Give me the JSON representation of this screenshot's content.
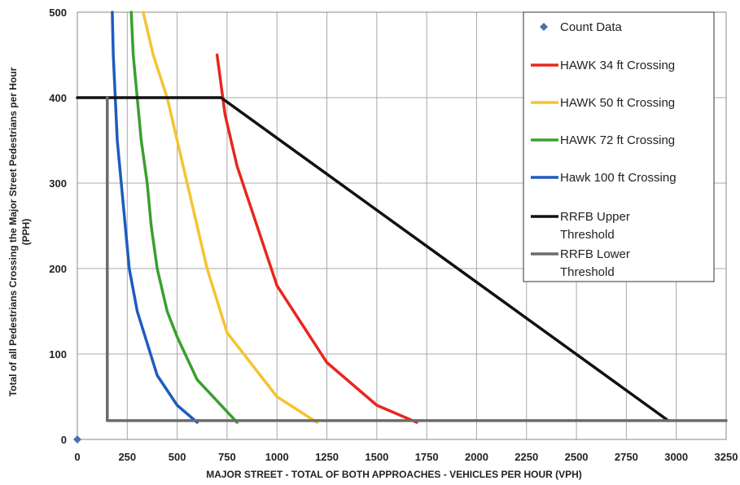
{
  "chart_data": {
    "type": "line",
    "xlabel": "MAJOR STREET - TOTAL OF BOTH APPROACHES - VEHICLES PER HOUR (VPH)",
    "ylabel_line1": "Total of all Pedestrians Crossing the Major Street Pedestrians per Hour",
    "ylabel_line2": "(PPH)",
    "xlim": [
      0,
      3250
    ],
    "ylim": [
      0,
      500
    ],
    "xticks": [
      0,
      250,
      500,
      750,
      1000,
      1250,
      1500,
      1750,
      2000,
      2250,
      2500,
      2750,
      3000,
      3250
    ],
    "yticks": [
      0,
      100,
      200,
      300,
      400,
      500
    ],
    "grid": true,
    "legend_position": "top-right",
    "series": [
      {
        "name": "Count Data",
        "kind": "marker",
        "color": "#4a6fb5",
        "points": [
          [
            0,
            0
          ]
        ]
      },
      {
        "name": "HAWK 34 ft Crossing",
        "kind": "line",
        "color": "#e8261f",
        "points": [
          [
            700,
            450
          ],
          [
            740,
            380
          ],
          [
            800,
            320
          ],
          [
            900,
            250
          ],
          [
            1000,
            180
          ],
          [
            1250,
            90
          ],
          [
            1500,
            40
          ],
          [
            1700,
            20
          ]
        ]
      },
      {
        "name": "HAWK 50 ft Crossing",
        "kind": "line",
        "color": "#f4c430",
        "points": [
          [
            330,
            500
          ],
          [
            380,
            450
          ],
          [
            450,
            400
          ],
          [
            500,
            350
          ],
          [
            550,
            300
          ],
          [
            600,
            250
          ],
          [
            650,
            200
          ],
          [
            750,
            125
          ],
          [
            1000,
            50
          ],
          [
            1200,
            20
          ]
        ]
      },
      {
        "name": "HAWK 72 ft Crossing",
        "kind": "line",
        "color": "#3aa02f",
        "points": [
          [
            270,
            500
          ],
          [
            280,
            450
          ],
          [
            300,
            400
          ],
          [
            320,
            350
          ],
          [
            350,
            300
          ],
          [
            370,
            250
          ],
          [
            400,
            200
          ],
          [
            450,
            150
          ],
          [
            500,
            120
          ],
          [
            600,
            70
          ],
          [
            800,
            20
          ]
        ]
      },
      {
        "name": "Hawk 100 ft Crossing",
        "kind": "line",
        "color": "#1f5bbf",
        "points": [
          [
            175,
            500
          ],
          [
            180,
            450
          ],
          [
            190,
            400
          ],
          [
            200,
            350
          ],
          [
            220,
            300
          ],
          [
            240,
            250
          ],
          [
            260,
            200
          ],
          [
            300,
            150
          ],
          [
            400,
            75
          ],
          [
            500,
            40
          ],
          [
            600,
            20
          ]
        ]
      },
      {
        "name": "RRFB Upper\nThreshold",
        "kind": "line",
        "color": "#111111",
        "points": [
          [
            0,
            400
          ],
          [
            720,
            400
          ],
          [
            2960,
            22
          ]
        ]
      },
      {
        "name": "RRFB Lower\nThreshold",
        "kind": "line",
        "color": "#6b6b6b",
        "points": [
          [
            150,
            400
          ],
          [
            150,
            22
          ],
          [
            3250,
            22
          ]
        ]
      }
    ]
  }
}
